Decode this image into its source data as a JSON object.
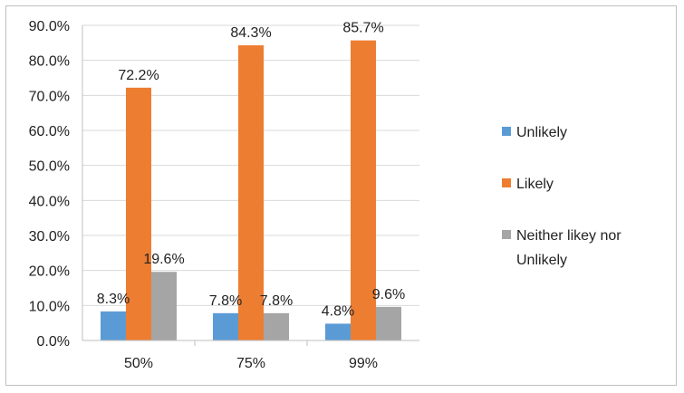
{
  "chart_data": {
    "type": "bar",
    "categories": [
      "50%",
      "75%",
      "99%"
    ],
    "series": [
      {
        "name": "Unlikely",
        "values": [
          8.3,
          7.8,
          4.8
        ],
        "color": "#5b9bd5"
      },
      {
        "name": "Likely",
        "values": [
          72.2,
          84.3,
          85.7
        ],
        "color": "#ed7d31"
      },
      {
        "name": "Neither likey nor Unlikely",
        "values": [
          19.6,
          7.8,
          9.6
        ],
        "color": "#a5a5a5"
      }
    ],
    "title": "",
    "xlabel": "",
    "ylabel": "",
    "ylim": [
      0,
      90
    ],
    "ytick_step": 10,
    "yticks": [
      "0.0%",
      "10.0%",
      "20.0%",
      "30.0%",
      "40.0%",
      "50.0%",
      "60.0%",
      "70.0%",
      "80.0%",
      "90.0%"
    ],
    "data_labels": [
      [
        "8.3%",
        "7.8%",
        "4.8%"
      ],
      [
        "72.2%",
        "84.3%",
        "85.7%"
      ],
      [
        "19.6%",
        "7.8%",
        "9.6%"
      ]
    ],
    "legend_lines": [
      [
        "Unlikely"
      ],
      [
        "Likely"
      ],
      [
        "Neither likey nor",
        "Unlikely"
      ]
    ],
    "grid": true,
    "legend_position": "right",
    "gridline_color": "#d9d9d9",
    "axis_color": "#bfbfbf"
  }
}
